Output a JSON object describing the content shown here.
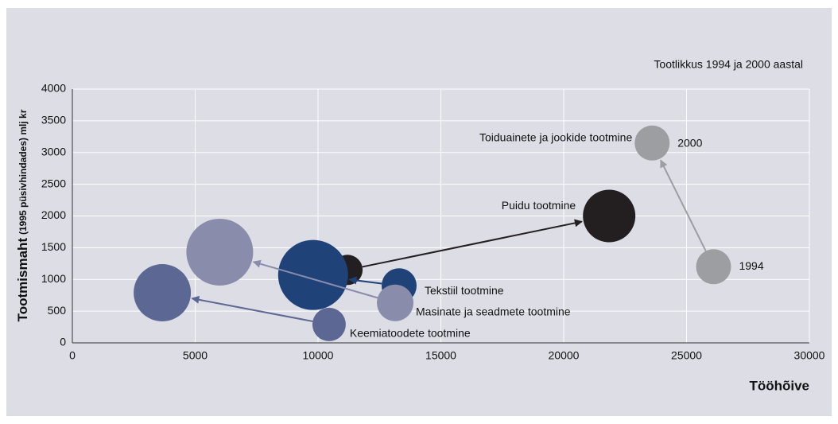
{
  "chart_data": {
    "type": "bubble",
    "title": "Tootlikkus 1994 ja 2000 aastal",
    "xlabel": "Tööhõive",
    "ylabel": [
      "Tootmismaht",
      "(1995 püsivhindades) mlj kr"
    ],
    "year_labels": [
      "1994",
      "2000"
    ],
    "xlim": [
      0,
      30000
    ],
    "xticks": [
      0,
      5000,
      10000,
      15000,
      20000,
      25000,
      30000
    ],
    "ylim": [
      0,
      4000
    ],
    "yticks": [
      0,
      500,
      1000,
      1500,
      2000,
      2500,
      3000,
      3500,
      4000
    ],
    "grid": true,
    "series": [
      {
        "name": "Toiduainete ja jookide tootmine",
        "color": "#9d9ea2",
        "x": [
          26100,
          23600
        ],
        "y": [
          1200,
          3150
        ],
        "size": [
          22,
          22
        ]
      },
      {
        "name": "Puidu tootmine",
        "color": "#231f20",
        "x": [
          11200,
          21850
        ],
        "y": [
          1150,
          2000
        ],
        "size": [
          19,
          33
        ]
      },
      {
        "name": "Tekstiil tootmine",
        "color": "#1f4279",
        "x": [
          13300,
          9800
        ],
        "y": [
          900,
          1070
        ],
        "size": [
          22,
          44
        ]
      },
      {
        "name": "Masinate ja seadmete tootmine",
        "color": "#8a8cab",
        "x": [
          13140,
          6000
        ],
        "y": [
          630,
          1430
        ],
        "size": [
          23,
          42
        ]
      },
      {
        "name": "Keemiatoodete tootmine",
        "color": "#5c6794",
        "x": [
          10450,
          3660
        ],
        "y": [
          290,
          790
        ],
        "size": [
          21,
          36
        ]
      }
    ]
  }
}
